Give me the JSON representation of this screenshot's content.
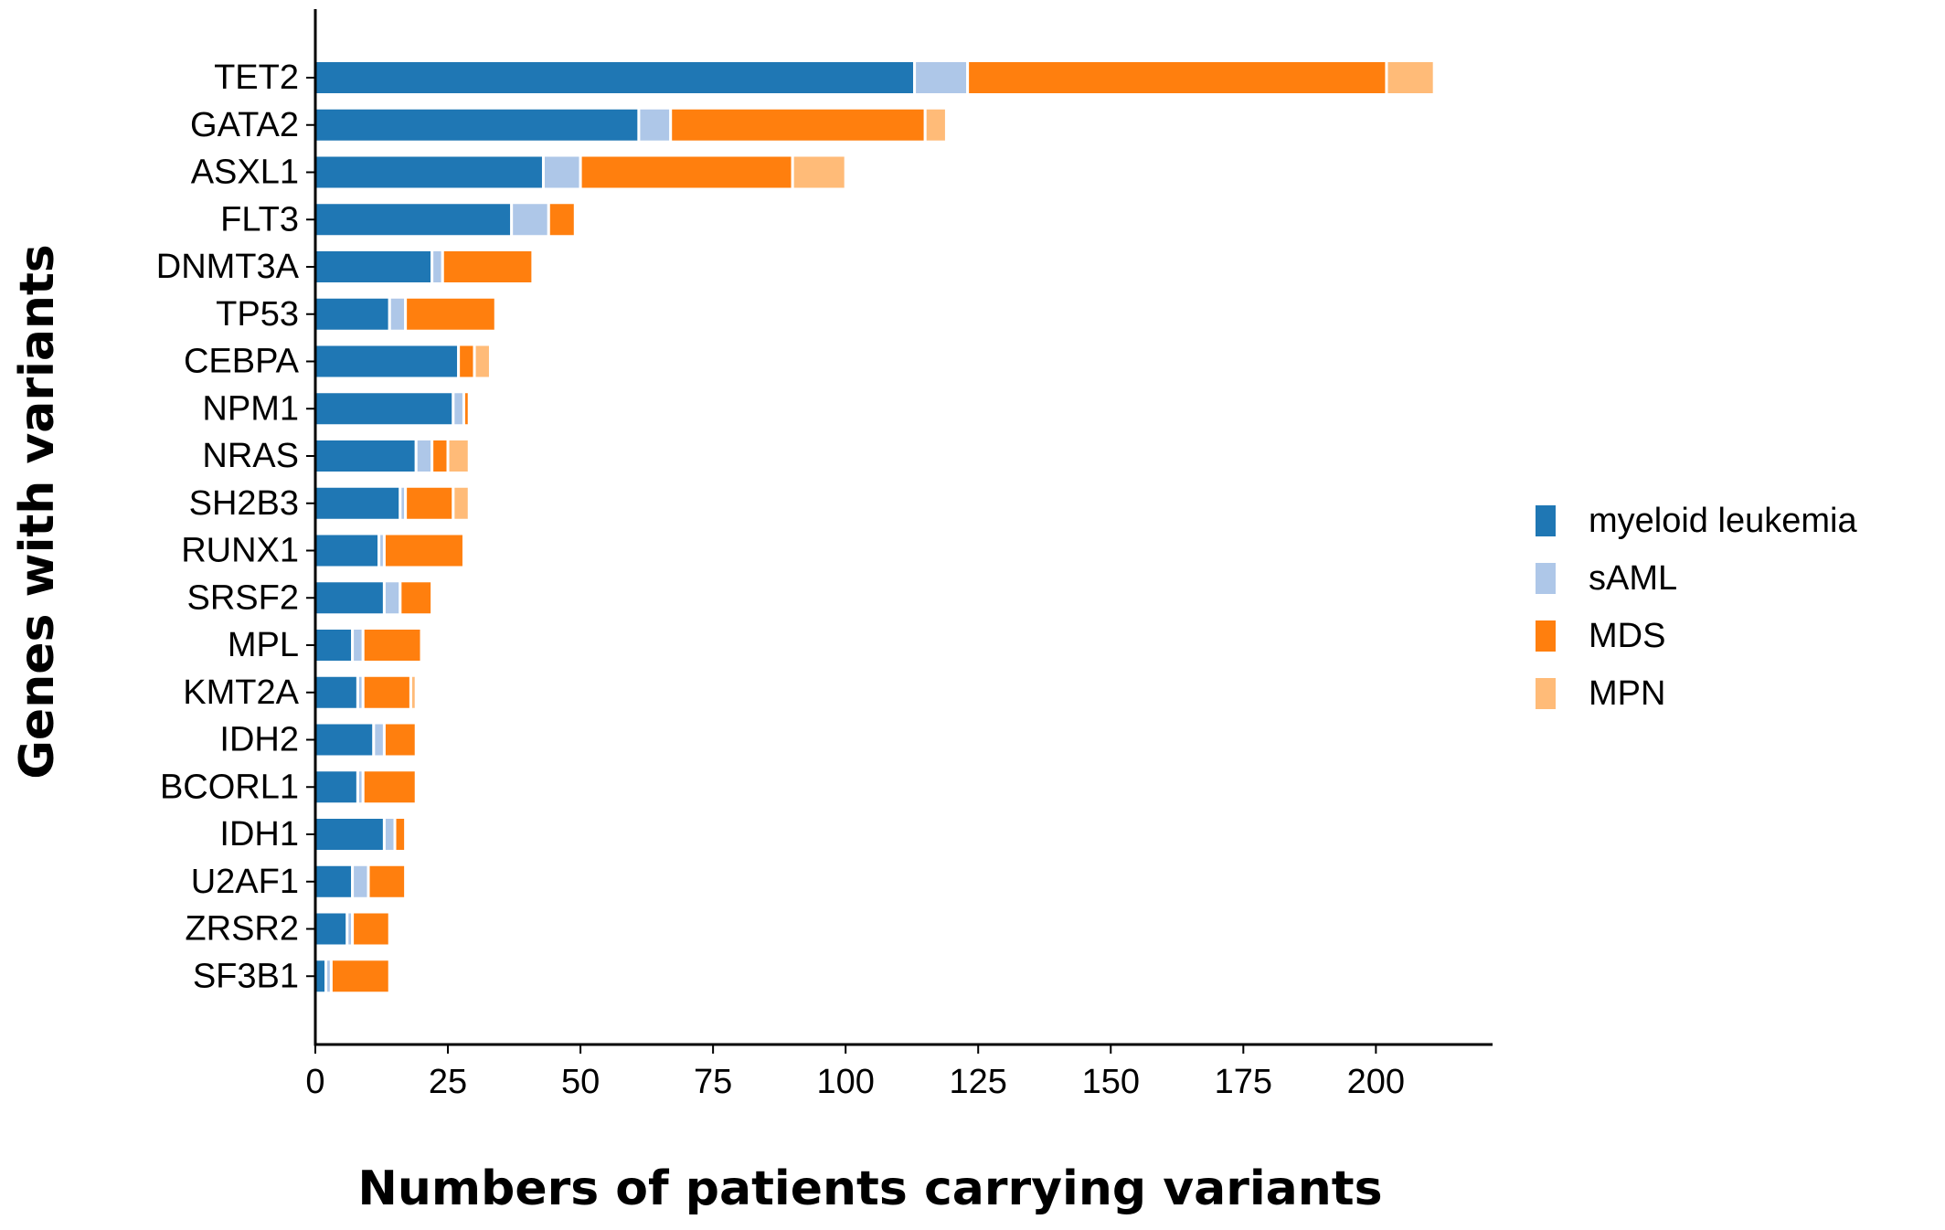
{
  "chart_data": {
    "type": "bar",
    "orientation": "horizontal",
    "stacked": true,
    "xlabel": "Numbers of patients carrying variants",
    "ylabel": "Genes with variants",
    "xlim": [
      0,
      222
    ],
    "xticks": [
      0,
      25,
      50,
      75,
      100,
      125,
      150,
      175,
      200
    ],
    "grid": false,
    "legend_position": "right",
    "categories": [
      "TET2",
      "GATA2",
      "ASXL1",
      "FLT3",
      "DNMT3A",
      "TP53",
      "CEBPA",
      "NPM1",
      "NRAS",
      "SH2B3",
      "RUNX1",
      "SRSF2",
      "MPL",
      "KMT2A",
      "IDH2",
      "BCORL1",
      "IDH1",
      "U2AF1",
      "ZRSR2",
      "SF3B1"
    ],
    "series": [
      {
        "name": "myeloid leukemia",
        "color": "#1f77b4",
        "values": [
          113,
          61,
          43,
          37,
          22,
          14,
          27,
          26,
          19,
          16,
          12,
          13,
          7,
          8,
          11,
          8,
          13,
          7,
          6,
          2
        ]
      },
      {
        "name": "sAML",
        "color": "#aec7e8",
        "values": [
          10,
          6,
          7,
          7,
          2,
          3,
          0,
          2,
          3,
          1,
          1,
          3,
          2,
          1,
          2,
          1,
          2,
          3,
          1,
          1
        ]
      },
      {
        "name": "MDS",
        "color": "#ff7f0e",
        "values": [
          79,
          48,
          40,
          5,
          17,
          17,
          3,
          1,
          3,
          9,
          15,
          6,
          11,
          9,
          6,
          10,
          2,
          7,
          7,
          11
        ]
      },
      {
        "name": "MPN",
        "color": "#ffbb78",
        "values": [
          9,
          4,
          10,
          0,
          0,
          0,
          3,
          0,
          4,
          3,
          0,
          0,
          0,
          1,
          0,
          0,
          0,
          0,
          0,
          0
        ]
      }
    ]
  }
}
